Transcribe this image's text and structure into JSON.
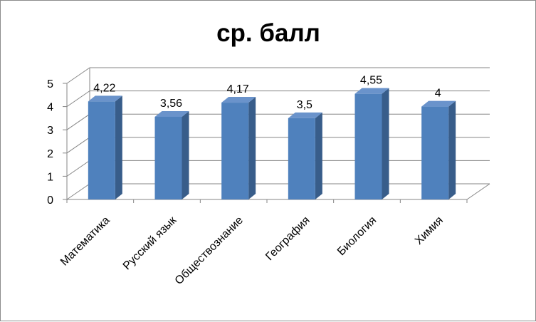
{
  "chart_data": {
    "type": "bar",
    "title": "ср. балл",
    "categories": [
      "Математика",
      "Русский язык",
      "Обществознание",
      "География",
      "Биология",
      "Химия"
    ],
    "values": [
      4.22,
      3.56,
      4.17,
      3.5,
      4.55,
      4
    ],
    "data_labels": [
      "4,22",
      "3,56",
      "4,17",
      "3,5",
      "4,55",
      "4"
    ],
    "y_ticks": [
      "0",
      "1",
      "2",
      "3",
      "4",
      "5"
    ],
    "ylim": [
      0,
      5
    ],
    "xlabel": "",
    "ylabel": "",
    "grid": true,
    "legend": "none",
    "style": "3d-column",
    "colors": {
      "bar_front": "#4f81bd",
      "bar_side": "#385d8a",
      "bar_top": "#6a93cb",
      "grid": "#868686",
      "axis": "#868686"
    }
  }
}
